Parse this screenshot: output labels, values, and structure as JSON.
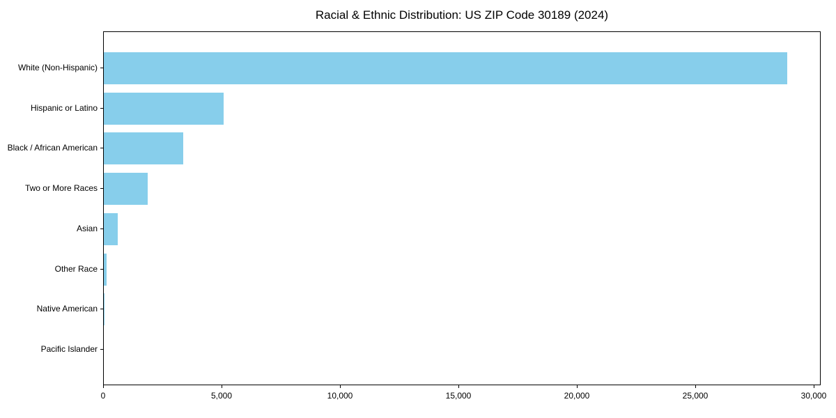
{
  "page": {
    "background": "#ffffff",
    "text_color": "#000000"
  },
  "chart_data": {
    "type": "bar",
    "orientation": "horizontal",
    "title": "Racial & Ethnic Distribution: US ZIP Code 30189 (2024)",
    "categories": [
      "White (Non-Hispanic)",
      "Hispanic or Latino",
      "Black / African American",
      "Two or More Races",
      "Asian",
      "Other Race",
      "Native American",
      "Pacific Islander"
    ],
    "values": [
      28850,
      5070,
      3340,
      1860,
      600,
      120,
      30,
      10
    ],
    "xlabel": "",
    "ylabel": "",
    "xlim": [
      0,
      30300
    ],
    "xticks": [
      0,
      5000,
      10000,
      15000,
      20000,
      25000,
      30000
    ],
    "xtick_labels": [
      "0",
      "5,000",
      "10,000",
      "15,000",
      "20,000",
      "25,000",
      "30,000"
    ],
    "bar_color": "#87CEEB",
    "grid": false,
    "legend": null,
    "plot_border_color": "#000000"
  }
}
